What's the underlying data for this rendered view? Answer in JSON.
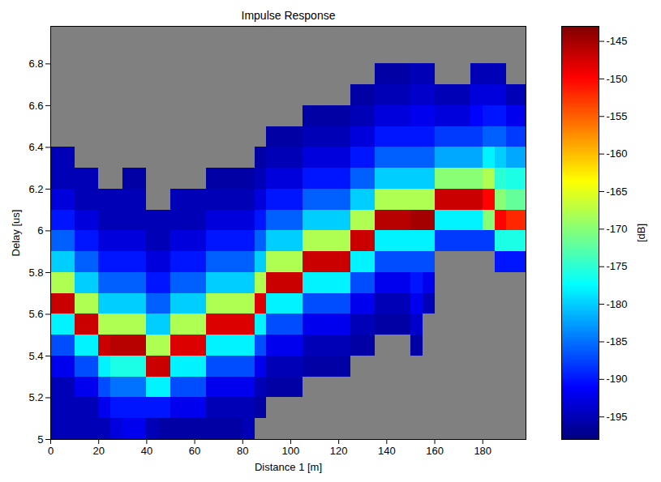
{
  "chart_data": {
    "type": "heatmap",
    "title": "Impulse Response",
    "x_label": "Distance 1 [m]",
    "y_label": "Delay [us]",
    "xlim": [
      0,
      198
    ],
    "xticks": [
      0,
      20,
      40,
      60,
      80,
      100,
      120,
      140,
      160,
      180
    ],
    "ylim": [
      5,
      6.98
    ],
    "yticks": [
      5,
      5.2,
      5.4,
      5.6,
      5.8,
      6,
      6.2,
      6.4,
      6.6,
      6.8
    ],
    "x": [
      2.5,
      7.5,
      12.5,
      17.5,
      22.5,
      27.5,
      32.5,
      37.5,
      42.5,
      47.5,
      52.5,
      57.5,
      62.5,
      67.5,
      72.5,
      77.5,
      82.5,
      87.5,
      92.5,
      97.5,
      102.5,
      107.5,
      112.5,
      117.5,
      122.5,
      127.5,
      132.5,
      137.5,
      142.5,
      147.5,
      152.5,
      157.5,
      162.5,
      167.5,
      172.5,
      177.5,
      182.5,
      187.5,
      192.5,
      197.5
    ],
    "y": [
      5.05,
      5.15,
      5.25,
      5.35,
      5.45,
      5.55,
      5.65,
      5.75,
      5.85,
      5.95,
      6.05,
      6.15,
      6.25,
      6.35,
      6.45,
      6.55,
      6.65,
      6.75,
      6.85,
      6.95
    ],
    "values": [
      [
        -195,
        -195,
        -195,
        -192,
        -187,
        -178,
        -147,
        -168,
        -180,
        -186,
        -190,
        -193,
        -195,
        -195,
        null,
        null,
        null,
        null,
        null,
        null
      ],
      [
        -195,
        -195,
        -195,
        -192,
        -187,
        -178,
        -147,
        -168,
        -180,
        -186,
        -190,
        -193,
        -195,
        -195,
        null,
        null,
        null,
        null,
        null,
        null
      ],
      [
        -195,
        -195,
        -192,
        -187,
        -178,
        -147,
        -168,
        -180,
        -186,
        -190,
        -193,
        -195,
        -195,
        null,
        null,
        null,
        null,
        null,
        null,
        null
      ],
      [
        -195,
        -195,
        -192,
        -187,
        -178,
        -147,
        -168,
        -180,
        -186,
        -190,
        -193,
        -195,
        -195,
        null,
        null,
        null,
        null,
        null,
        null,
        null
      ],
      [
        -195,
        -192,
        -187,
        -178,
        -147,
        -168,
        -180,
        -186,
        -190,
        -193,
        -195,
        -195,
        null,
        null,
        null,
        null,
        null,
        null,
        null,
        null
      ],
      [
        -193,
        -190,
        -185,
        -176,
        -146,
        -168,
        -180,
        -186,
        -190,
        -193,
        -195,
        -195,
        null,
        null,
        null,
        null,
        null,
        null,
        null,
        null
      ],
      [
        -192,
        -190,
        -185,
        -176,
        -146,
        -168,
        -180,
        -186,
        -190,
        -193,
        -195,
        -195,
        -196,
        null,
        null,
        null,
        null,
        null,
        null,
        null
      ],
      [
        -192,
        -190,
        -185,
        -176,
        -146,
        -168,
        -180,
        -186,
        -190,
        -193,
        -195,
        -195,
        -196,
        null,
        null,
        null,
        null,
        null,
        null,
        null
      ],
      [
        -195,
        -190,
        -178,
        -147,
        -168,
        -180,
        -186,
        -190,
        -193,
        -195,
        -195,
        null,
        null,
        null,
        null,
        null,
        null,
        null,
        null,
        null
      ],
      [
        -196,
        -190,
        -178,
        -147,
        -168,
        -180,
        -186,
        -190,
        -193,
        -195,
        -195,
        null,
        null,
        null,
        null,
        null,
        null,
        null,
        null,
        null
      ],
      [
        -196,
        -192,
        -187,
        -178,
        -148,
        -168,
        -180,
        -186,
        -190,
        -193,
        -195,
        -195,
        null,
        null,
        null,
        null,
        null,
        null,
        null,
        null
      ],
      [
        -196,
        -192,
        -187,
        -178,
        -148,
        -168,
        -180,
        -186,
        -190,
        -193,
        -195,
        -195,
        null,
        null,
        null,
        null,
        null,
        null,
        null,
        null
      ],
      [
        -196,
        -192,
        -187,
        -178,
        -148,
        -168,
        -180,
        -186,
        -190,
        -193,
        -195,
        -195,
        null,
        null,
        null,
        null,
        null,
        null,
        null,
        null
      ],
      [
        -196,
        -195,
        -192,
        -187,
        -178,
        -148,
        -168,
        -180,
        -186,
        -190,
        -193,
        -195,
        -196,
        null,
        null,
        null,
        null,
        null,
        null,
        null
      ],
      [
        -196,
        -195,
        -192,
        -187,
        -178,
        -148,
        -168,
        -180,
        -186,
        -190,
        -193,
        -195,
        -196,
        null,
        null,
        null,
        null,
        null,
        null,
        null
      ],
      [
        -196,
        -195,
        -192,
        -187,
        -178,
        -148,
        -168,
        -180,
        -186,
        -190,
        -193,
        -195,
        -196,
        null,
        null,
        null,
        null,
        null,
        null,
        null
      ],
      [
        -195,
        -195,
        -192,
        -187,
        -178,
        -148,
        -168,
        -180,
        -186,
        -190,
        -193,
        -195,
        -196,
        null,
        null,
        null,
        null,
        null,
        null,
        null
      ],
      [
        null,
        -196,
        -195,
        -192,
        -187,
        -178,
        -148,
        -168,
        -180,
        -186,
        -190,
        -193,
        -195,
        -196,
        null,
        null,
        null,
        null,
        null,
        null
      ],
      [
        null,
        null,
        -196,
        -195,
        -192,
        -187,
        -178,
        -147,
        -168,
        -180,
        -186,
        -190,
        -193,
        -195,
        -196,
        null,
        null,
        null,
        null,
        null
      ],
      [
        null,
        null,
        -196,
        -195,
        -192,
        -187,
        -178,
        -147,
        -168,
        -180,
        -186,
        -190,
        -193,
        -195,
        -196,
        null,
        null,
        null,
        null,
        null
      ],
      [
        null,
        null,
        -196,
        -195,
        -192,
        -187,
        -178,
        -147,
        -168,
        -180,
        -186,
        -190,
        -193,
        -195,
        -196,
        null,
        null,
        null,
        null,
        null
      ],
      [
        null,
        null,
        null,
        -196,
        -195,
        -192,
        -187,
        -178,
        -147,
        -168,
        -180,
        -186,
        -190,
        -193,
        -195,
        -196,
        null,
        null,
        null,
        null
      ],
      [
        null,
        null,
        null,
        -196,
        -195,
        -192,
        -187,
        -178,
        -147,
        -168,
        -180,
        -186,
        -190,
        -193,
        -195,
        -196,
        null,
        null,
        null,
        null
      ],
      [
        null,
        null,
        null,
        -196,
        -195,
        -192,
        -187,
        -178,
        -147,
        -168,
        -180,
        -186,
        -190,
        -193,
        -195,
        -196,
        null,
        null,
        null,
        null
      ],
      [
        null,
        null,
        null,
        -196,
        -195,
        -192,
        -187,
        -178,
        -147,
        -168,
        -180,
        -186,
        -190,
        -193,
        -195,
        -196,
        null,
        null,
        null,
        null
      ],
      [
        null,
        null,
        null,
        null,
        -196,
        -195,
        -192,
        -187,
        -178,
        -147,
        -168,
        -180,
        -186,
        -190,
        -193,
        -195,
        -196,
        null,
        null,
        null
      ],
      [
        null,
        null,
        null,
        null,
        -196,
        -195,
        -192,
        -187,
        -178,
        -147,
        -168,
        -180,
        -186,
        -190,
        -193,
        -195,
        -196,
        null,
        null,
        null
      ],
      [
        null,
        null,
        null,
        null,
        null,
        -196,
        -195,
        -192,
        -187,
        -178,
        -146,
        -168,
        -180,
        -186,
        -190,
        -193,
        -195,
        -196,
        null,
        null
      ],
      [
        null,
        null,
        null,
        null,
        null,
        -196,
        -195,
        -192,
        -187,
        -178,
        -146,
        -168,
        -180,
        -186,
        -190,
        -193,
        -195,
        -196,
        null,
        null
      ],
      [
        null,
        null,
        null,
        null,
        null,
        -196,
        -195,
        -192,
        -187,
        -178,
        -146,
        -168,
        -180,
        -186,
        -190,
        -193,
        -195,
        -196,
        null,
        null
      ],
      [
        null,
        null,
        null,
        null,
        -196,
        -194,
        -192,
        -190,
        -187,
        -178,
        -145,
        -168,
        -180,
        -186,
        -190,
        -192,
        -194,
        -195,
        null,
        null
      ],
      [
        null,
        null,
        null,
        null,
        null,
        null,
        -195,
        -192,
        -187,
        -178,
        -145,
        -168,
        -180,
        -186,
        -190,
        -192,
        -194,
        -195,
        null,
        null
      ],
      [
        null,
        null,
        null,
        null,
        null,
        null,
        null,
        null,
        null,
        -188,
        -178,
        -147,
        -170,
        -182,
        -188,
        -193,
        -195,
        null,
        null,
        null
      ],
      [
        null,
        null,
        null,
        null,
        null,
        null,
        null,
        null,
        null,
        -188,
        -178,
        -147,
        -170,
        -182,
        -188,
        -193,
        -195,
        null,
        null,
        null
      ],
      [
        null,
        null,
        null,
        null,
        null,
        null,
        null,
        null,
        null,
        -188,
        -178,
        -147,
        -170,
        -182,
        -188,
        -193,
        -195,
        null,
        null,
        null
      ],
      [
        null,
        null,
        null,
        null,
        null,
        null,
        null,
        null,
        null,
        -188,
        -178,
        -147,
        -170,
        -182,
        -188,
        -191,
        -193,
        -195,
        null,
        null
      ],
      [
        null,
        null,
        null,
        null,
        null,
        null,
        null,
        null,
        null,
        -188,
        -170,
        -150,
        -168,
        -178,
        -186,
        -190,
        -193,
        -195,
        null,
        null
      ],
      [
        null,
        null,
        null,
        null,
        null,
        null,
        null,
        null,
        -190,
        -176,
        -150,
        -170,
        -175,
        -180,
        -186,
        -190,
        -193,
        -195,
        null,
        null
      ],
      [
        null,
        null,
        null,
        null,
        null,
        null,
        null,
        null,
        -190,
        -176,
        -152,
        -172,
        -176,
        -182,
        -188,
        -192,
        -195,
        null,
        null,
        null
      ],
      [
        null,
        null,
        null,
        null,
        null,
        null,
        null,
        null,
        -190,
        -176,
        -152,
        -172,
        -176,
        -182,
        -188,
        -192,
        -195,
        null,
        null,
        null
      ]
    ],
    "colorbar": {
      "label": "[dB]",
      "range": [
        -198,
        -143
      ],
      "ticks": [
        -195,
        -190,
        -185,
        -180,
        -175,
        -170,
        -165,
        -160,
        -155,
        -150,
        -145
      ]
    }
  }
}
